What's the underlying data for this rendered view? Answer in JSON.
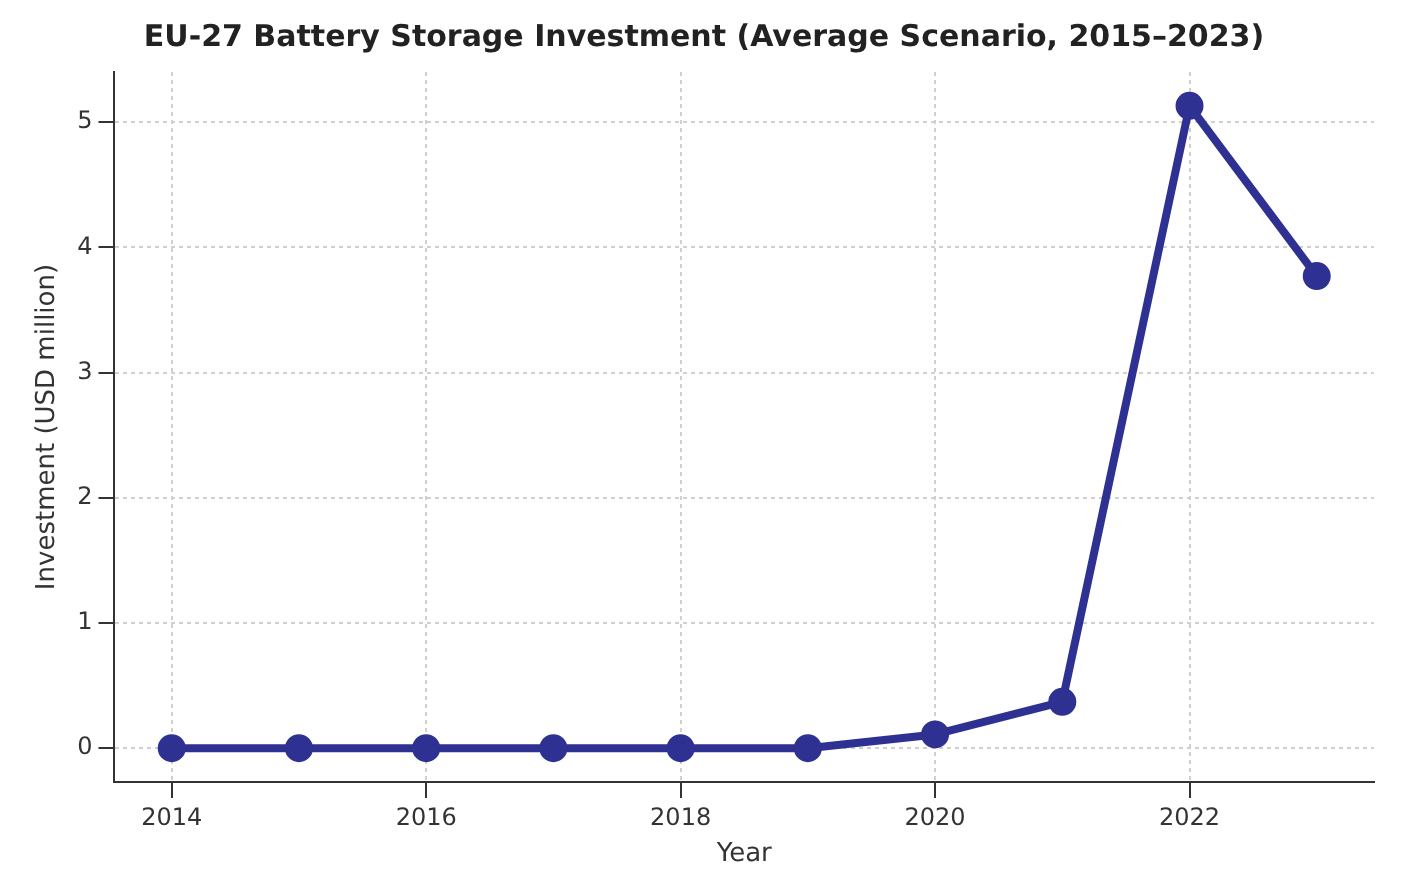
{
  "chart_data": {
    "type": "line",
    "title": "EU-27 Battery Storage Investment (Average Scenario, 2015–2023)",
    "xlabel": "Year",
    "ylabel": "Investment (USD million)",
    "x": [
      2014,
      2015,
      2016,
      2017,
      2018,
      2019,
      2020,
      2021,
      2022,
      2023
    ],
    "series": [
      {
        "color": "#2e3192",
        "values": [
          0,
          0,
          0,
          0,
          0,
          0,
          0.11,
          0.37,
          5.13,
          3.77
        ]
      }
    ],
    "xlim": [
      2013.55,
      2023.45
    ],
    "xticks": [
      2014,
      2016,
      2018,
      2020,
      2022
    ],
    "ylim": [
      -0.27,
      5.4
    ],
    "yticks": [
      0,
      1,
      2,
      3,
      4,
      5
    ],
    "grid": true,
    "marker": "circle",
    "line_style": "solid",
    "legend": false
  }
}
